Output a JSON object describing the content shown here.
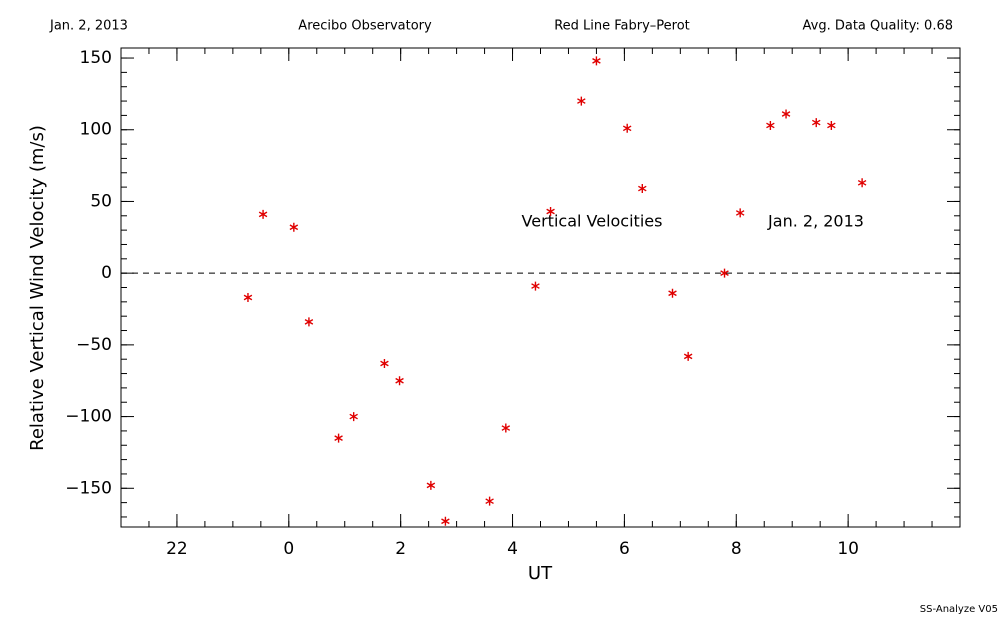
{
  "chart_data": {
    "type": "scatter",
    "header": [
      "Jan. 2, 2013",
      "Arecibo Observatory",
      "Red Line Fabry–Perot",
      "Avg. Data Quality: 0.68"
    ],
    "xlabel": "UT",
    "ylabel": "Relative Vertical Wind Velocity (m/s)",
    "annotations": [
      "Vertical Velocities",
      "Jan. 2, 2013"
    ],
    "footer": "SS-Analyze V05",
    "color": "#e00000",
    "hline": 0,
    "xlim": [
      -3,
      12
    ],
    "ylim": [
      -177,
      157
    ],
    "xticks": [
      {
        "value": -2,
        "label": "22"
      },
      0,
      2,
      4,
      6,
      8,
      10
    ],
    "yticks": [
      {
        "value": -150,
        "label": "−150"
      },
      {
        "value": -100,
        "label": "−100"
      },
      {
        "value": -50,
        "label": "−50"
      },
      0,
      50,
      100,
      150
    ],
    "x": [
      -0.73,
      -0.46,
      0.09,
      0.36,
      0.89,
      1.16,
      1.71,
      1.98,
      2.54,
      2.8,
      3.59,
      3.88,
      4.41,
      4.68,
      5.23,
      5.5,
      6.05,
      6.32,
      6.86,
      7.14,
      7.79,
      8.07,
      8.61,
      8.89,
      9.43,
      9.7,
      10.25
    ],
    "values": [
      -17,
      41,
      32,
      -34,
      -115,
      -100,
      -63,
      -75,
      -148,
      -173,
      -159,
      -108,
      -9,
      43,
      120,
      148,
      101,
      59,
      -14,
      -58,
      0,
      42,
      103,
      111,
      105,
      103,
      63
    ]
  }
}
